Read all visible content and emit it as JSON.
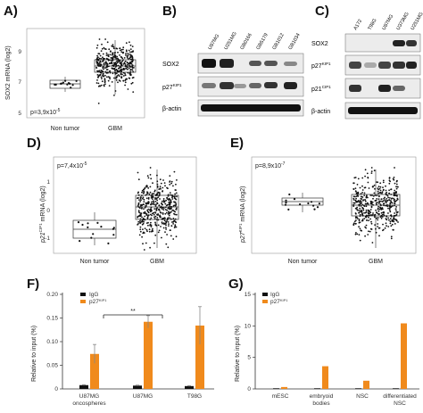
{
  "panels": {
    "A": {
      "label": "A)",
      "ylabel": "SOX2 mRNA (log2)",
      "pvalue": "p=3,9x10",
      "pvalue_exp": "-5",
      "categories": [
        "Non tumor",
        "GBM"
      ],
      "yticks": [
        "5",
        "7",
        "9"
      ]
    },
    "B": {
      "label": "B)",
      "lanes": [
        "U87MG",
        "U251MG",
        "GB0166",
        "GB5179",
        "GB1012",
        "GB1034"
      ],
      "rows": [
        {
          "name": "SOX2",
          "sup": ""
        },
        {
          "name": "p27",
          "sup": "KIP1"
        },
        {
          "name": "β-actin",
          "sup": ""
        }
      ]
    },
    "C": {
      "label": "C)",
      "lanes": [
        "A172",
        "T98G",
        "U87MG",
        "U373MG",
        "U251MG"
      ],
      "rows": [
        {
          "name": "SOX2",
          "sup": ""
        },
        {
          "name": "p27",
          "sup": "KIP1"
        },
        {
          "name": "p21",
          "sup": "CIP1"
        },
        {
          "name": "β-actin",
          "sup": ""
        }
      ]
    },
    "D": {
      "label": "D)",
      "ylabel_main": "p21",
      "ylabel_sup": "CIP1",
      "ylabel_rest": " mRNA (log2)",
      "pvalue": "p=7,4x10",
      "pvalue_exp": "-5",
      "categories": [
        "Non tumor",
        "GBM"
      ],
      "yticks": [
        "-1",
        "0",
        "1"
      ]
    },
    "E": {
      "label": "E)",
      "ylabel_main": "p27",
      "ylabel_sup": "KIP1",
      "ylabel_rest": " mRNA (log2)",
      "pvalue": "p=8,9x10",
      "pvalue_exp": "-7",
      "categories": [
        "Non tumor",
        "GBM"
      ],
      "yticks": [
        "-1",
        "0",
        "1"
      ]
    },
    "F": {
      "label": "F)",
      "ylabel": "Relative to input (%)",
      "legend": [
        "IgG",
        "p27KIP1"
      ],
      "legend_p27_main": "p27",
      "legend_p27_sup": "KIP1",
      "significance": "**",
      "yticks": [
        "0",
        "0.05",
        "0.10",
        "0.15",
        "0.20"
      ],
      "categories_line1": [
        "U87MG",
        "U87MG",
        "T98G"
      ],
      "categories_line2": [
        "oncospheres",
        "",
        ""
      ]
    },
    "G": {
      "label": "G)",
      "ylabel": "Relative to input (%)",
      "legend_p27_main": "p27",
      "legend_p27_sup": "KIP1",
      "legend_igg": "IgG",
      "yticks": [
        "0",
        "5",
        "10",
        "15"
      ],
      "categories_line1": [
        "mESC",
        "embryoid",
        "NSC",
        "differentiated"
      ],
      "categories_line2": [
        "",
        "bodies",
        "",
        "NSC"
      ]
    }
  },
  "chart_data": [
    {
      "type": "bar",
      "panel": "F",
      "ylabel": "Relative to input (%)",
      "ylim": [
        0,
        0.2
      ],
      "categories": [
        "U87MG oncospheres",
        "U87MG",
        "T98G"
      ],
      "series": [
        {
          "name": "IgG",
          "values": [
            0.008,
            0.007,
            0.006
          ],
          "errors": [
            0.001,
            0.001,
            0.001
          ]
        },
        {
          "name": "p27KIP1",
          "values": [
            0.074,
            0.142,
            0.134
          ],
          "errors": [
            0.02,
            0.013,
            0.04
          ]
        }
      ]
    },
    {
      "type": "bar",
      "panel": "G",
      "ylabel": "Relative to input (%)",
      "ylim": [
        0,
        15
      ],
      "categories": [
        "mESC",
        "embryoid bodies",
        "NSC",
        "differentiated NSC"
      ],
      "series": [
        {
          "name": "IgG",
          "values": [
            0.1,
            0.1,
            0.1,
            0.1
          ]
        },
        {
          "name": "p27KIP1",
          "values": [
            0.3,
            3.6,
            1.3,
            10.4
          ]
        }
      ]
    }
  ],
  "colors": {
    "bar_black": "#111111",
    "bar_orange": "#f08a1c",
    "plot_border": "#888888",
    "blot_bg": "#ebebeb",
    "scatter": "#111111"
  }
}
